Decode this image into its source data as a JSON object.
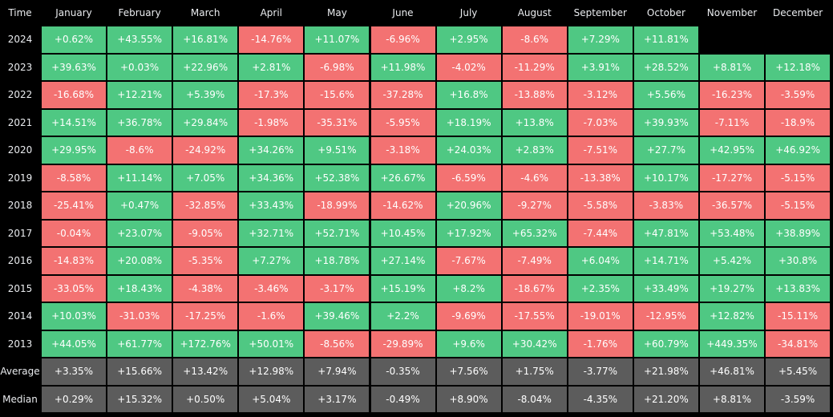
{
  "table": {
    "header": [
      "Time",
      "January",
      "February",
      "March",
      "April",
      "May",
      "June",
      "July",
      "August",
      "September",
      "October",
      "November",
      "December"
    ],
    "rows": [
      [
        "2024",
        "+0.62%",
        "+43.55%",
        "+16.81%",
        "-14.76%",
        "+11.07%",
        "-6.96%",
        "+2.95%",
        "-8.6%",
        "+7.29%",
        "+11.81%"
      ],
      [
        "2023",
        "+39.63%",
        "+0.03%",
        "+22.96%",
        "+2.81%",
        "-6.98%",
        "+11.98%",
        "-4.02%",
        "-11.29%",
        "+3.91%",
        "+28.52%",
        "+8.81%",
        "+12.18%"
      ],
      [
        "2022",
        "-16.68%",
        "+12.21%",
        "+5.39%",
        "-17.3%",
        "-15.6%",
        "-37.28%",
        "+16.8%",
        "-13.88%",
        "-3.12%",
        "+5.56%",
        "-16.23%",
        "-3.59%"
      ],
      [
        "2021",
        "+14.51%",
        "+36.78%",
        "+29.84%",
        "-1.98%",
        "-35.31%",
        "-5.95%",
        "+18.19%",
        "+13.8%",
        "-7.03%",
        "+39.93%",
        "-7.11%",
        "-18.9%"
      ],
      [
        "2020",
        "+29.95%",
        "-8.6%",
        "-24.92%",
        "+34.26%",
        "+9.51%",
        "-3.18%",
        "+24.03%",
        "+2.83%",
        "-7.51%",
        "+27.7%",
        "+42.95%",
        "+46.92%"
      ],
      [
        "2019",
        "-8.58%",
        "+11.14%",
        "+7.05%",
        "+34.36%",
        "+52.38%",
        "+26.67%",
        "-6.59%",
        "-4.6%",
        "-13.38%",
        "+10.17%",
        "-17.27%",
        "-5.15%"
      ],
      [
        "2018",
        "-25.41%",
        "+0.47%",
        "-32.85%",
        "+33.43%",
        "-18.99%",
        "-14.62%",
        "+20.96%",
        "-9.27%",
        "-5.58%",
        "-3.83%",
        "-36.57%",
        "-5.15%"
      ],
      [
        "2017",
        "-0.04%",
        "+23.07%",
        "-9.05%",
        "+32.71%",
        "+52.71%",
        "+10.45%",
        "+17.92%",
        "+65.32%",
        "-7.44%",
        "+47.81%",
        "+53.48%",
        "+38.89%"
      ],
      [
        "2016",
        "-14.83%",
        "+20.08%",
        "-5.35%",
        "+7.27%",
        "+18.78%",
        "+27.14%",
        "-7.67%",
        "-7.49%",
        "+6.04%",
        "+14.71%",
        "+5.42%",
        "+30.8%"
      ],
      [
        "2015",
        "-33.05%",
        "+18.43%",
        "-4.38%",
        "-3.46%",
        "-3.17%",
        "+15.19%",
        "+8.2%",
        "-18.67%",
        "+2.35%",
        "+33.49%",
        "+19.27%",
        "+13.83%"
      ],
      [
        "2014",
        "+10.03%",
        "-31.03%",
        "-17.25%",
        "-1.6%",
        "+39.46%",
        "+2.2%",
        "-9.69%",
        "-17.55%",
        "-19.01%",
        "-12.95%",
        "+12.82%",
        "-15.11%"
      ],
      [
        "2013",
        "+44.05%",
        "+61.77%",
        "+172.76%",
        "+50.01%",
        "-8.56%",
        "-29.89%",
        "+9.6%",
        "+30.42%",
        "-1.76%",
        "+60.79%",
        "+449.35%",
        "-34.81%"
      ]
    ],
    "summary_rows": [
      [
        "Average",
        "+3.35%",
        "+15.66%",
        "+13.42%",
        "+12.98%",
        "+7.94%",
        "-0.35%",
        "+7.56%",
        "+1.75%",
        "-3.77%",
        "+21.98%",
        "+46.81%",
        "+5.45%"
      ],
      [
        "Median",
        "+0.29%",
        "+15.32%",
        "+0.50%",
        "+5.04%",
        "+3.17%",
        "-0.49%",
        "+8.90%",
        "-8.04%",
        "-4.35%",
        "+21.20%",
        "+8.81%",
        "-3.59%"
      ]
    ]
  }
}
